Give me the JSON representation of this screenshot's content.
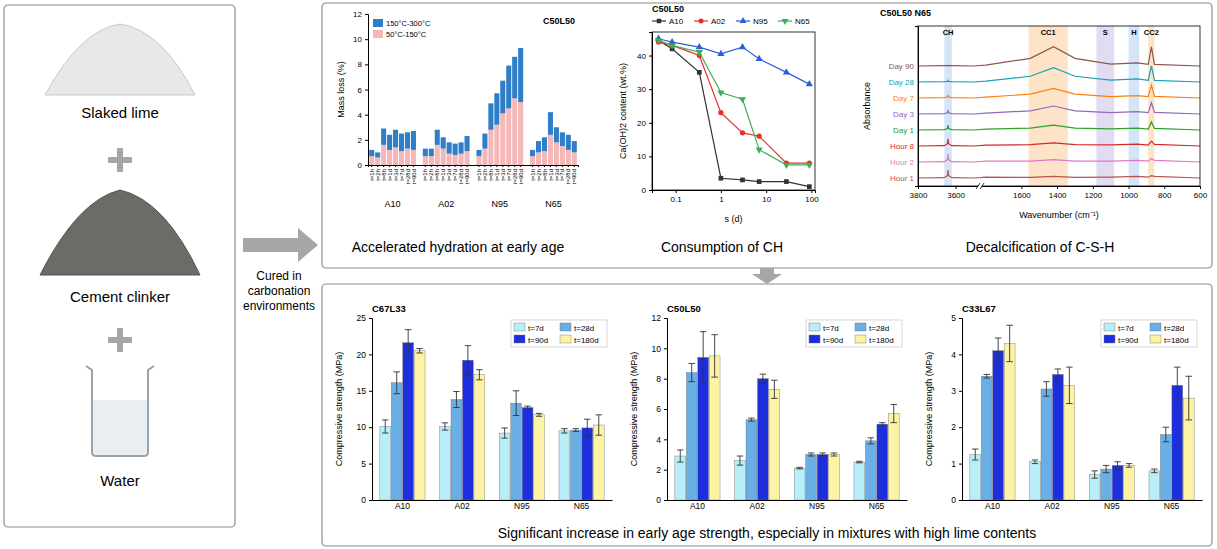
{
  "diagram": {
    "ingredients": [
      "Slaked lime",
      "Cement clinker",
      "Water"
    ],
    "process_label": "Cured in carbonation environments",
    "top_captions": [
      "Accelerated hydration at early age",
      "Consumption of CH",
      "Decalcification of C-S-H"
    ],
    "bottom_caption": "Significant increase in early age strength, especially in mixtures with high lime contents"
  },
  "chart_data": [
    {
      "type": "bar",
      "stacked": true,
      "title": "C50L50",
      "ylabel": "Mass loss (%)",
      "categories": [
        "t=1h",
        "t=2h",
        "t=8h",
        "t=1d",
        "t=3d",
        "t=7d",
        "t=28d",
        "t=90d",
        "t=1h",
        "t=2h",
        "t=8h",
        "t=1d",
        "t=3d",
        "t=7d",
        "t=28d",
        "t=90d",
        "t=1h",
        "t=2h",
        "t=8h",
        "t=1d",
        "t=3d",
        "t=7d",
        "t=28d",
        "t=90d",
        "t=1h",
        "t=2h",
        "t=8h",
        "t=1d",
        "t=3d",
        "t=7d",
        "t=28d",
        "t=90d"
      ],
      "groups": [
        "A10",
        "A02",
        "N95",
        "N65"
      ],
      "series": [
        {
          "name": "150°C-300°C",
          "color": "#2f7fc8",
          "values": [
            0.5,
            0.4,
            1.3,
            1.2,
            1.4,
            1.4,
            1.3,
            1.5,
            0.6,
            0.6,
            1.2,
            0.9,
            0.9,
            0.9,
            0.9,
            1.2,
            0.5,
            1.2,
            2.1,
            2.5,
            2.6,
            3.4,
            3.3,
            4.3,
            0.5,
            0.9,
            1.1,
            1.8,
            1.2,
            1.1,
            1.2,
            0.9
          ]
        },
        {
          "name": "50°C-150°C",
          "color": "#f4b8b8",
          "values": [
            0.7,
            0.6,
            1.6,
            1.2,
            1.4,
            1.1,
            1.3,
            1.2,
            0.7,
            0.7,
            1.6,
            1.3,
            0.9,
            0.8,
            0.9,
            1.1,
            0.7,
            1.3,
            2.8,
            3.2,
            4.1,
            4.5,
            5.3,
            5.0,
            0.7,
            1.0,
            1.1,
            2.4,
            1.8,
            1.5,
            1.2,
            1.0
          ]
        }
      ],
      "ylim": [
        0,
        12
      ],
      "yticks": [
        0,
        2,
        4,
        6,
        8,
        10,
        12
      ],
      "legend": "upper left"
    },
    {
      "type": "line",
      "log": "x",
      "title": "C50L50",
      "xlabel": "s (d)",
      "ylabel": "Ca(OH)2 content (wt.%)",
      "x": [
        0.0417,
        0.0833,
        0.333,
        1,
        3,
        7,
        28,
        90
      ],
      "series": [
        {
          "name": "A10",
          "color": "#333333",
          "marker": "square",
          "values": [
            44.5,
            42,
            35,
            3.5,
            3,
            2.5,
            2.5,
            1
          ]
        },
        {
          "name": "A02",
          "color": "#e8302a",
          "marker": "circle",
          "values": [
            44,
            43,
            40,
            23,
            17,
            16,
            8,
            8
          ]
        },
        {
          "name": "N95",
          "color": "#2b5fd9",
          "marker": "triangle-up",
          "values": [
            45,
            44,
            42.5,
            40.5,
            42.5,
            39,
            35,
            31.5
          ]
        },
        {
          "name": "N65",
          "color": "#3fae5a",
          "marker": "triangle-down",
          "values": [
            44.5,
            43,
            41,
            29,
            27,
            12,
            7.5,
            7.5
          ]
        }
      ],
      "xlim": [
        0.03,
        120
      ],
      "xticks": [
        0.1,
        1,
        10,
        100
      ],
      "ylim": [
        0,
        47
      ],
      "yticks": [
        0,
        10,
        20,
        30,
        40
      ],
      "legend": "top"
    },
    {
      "type": "line",
      "title": "C50L50 N65",
      "xlabel": "Wavenumber (cm⁻¹)",
      "ylabel": "Absorbance",
      "x": [
        3800,
        3660,
        3643,
        3640,
        3637,
        3620,
        3500,
        1800,
        1550,
        1420,
        1300,
        1100,
        950,
        890,
        872,
        855,
        600
      ],
      "series": [
        {
          "name": "Hour 1",
          "color": "#c0504d",
          "values": [
            0.5,
            0.52,
            0.65,
            1.0,
            0.65,
            0.52,
            0.5,
            0.55,
            0.54,
            0.6,
            0.54,
            0.56,
            0.6,
            0.55,
            0.65,
            0.6,
            0.5
          ]
        },
        {
          "name": "Hour 2",
          "color": "#e377c2",
          "values": [
            1.5,
            1.52,
            1.65,
            2.0,
            1.65,
            1.52,
            1.5,
            1.55,
            1.56,
            1.65,
            1.56,
            1.56,
            1.6,
            1.55,
            1.7,
            1.6,
            1.5
          ]
        },
        {
          "name": "Hour 8",
          "color": "#d62728",
          "values": [
            2.5,
            2.52,
            2.64,
            2.95,
            2.64,
            2.52,
            2.5,
            2.55,
            2.58,
            2.7,
            2.58,
            2.57,
            2.62,
            2.56,
            2.8,
            2.6,
            2.5
          ]
        },
        {
          "name": "Day 1",
          "color": "#2ca02c",
          "values": [
            3.5,
            3.52,
            3.59,
            3.8,
            3.59,
            3.52,
            3.5,
            3.55,
            3.62,
            3.8,
            3.62,
            3.57,
            3.62,
            3.56,
            4.0,
            3.6,
            3.5
          ]
        },
        {
          "name": "Day 3",
          "color": "#9467bd",
          "values": [
            4.5,
            4.52,
            4.58,
            4.75,
            4.58,
            4.52,
            4.5,
            4.55,
            4.7,
            5.0,
            4.7,
            4.59,
            4.65,
            4.58,
            5.2,
            4.6,
            4.5
          ]
        },
        {
          "name": "Day 7",
          "color": "#ff7f0e",
          "values": [
            5.5,
            5.52,
            5.56,
            5.7,
            5.56,
            5.52,
            5.5,
            5.55,
            5.74,
            6.1,
            5.74,
            5.59,
            5.65,
            5.58,
            6.3,
            5.6,
            5.5
          ]
        },
        {
          "name": "Day 28",
          "color": "#17a2b8",
          "values": [
            6.5,
            6.52,
            6.53,
            6.6,
            6.53,
            6.52,
            6.5,
            6.55,
            6.86,
            7.4,
            6.86,
            6.62,
            6.7,
            6.6,
            7.5,
            6.6,
            6.5
          ]
        },
        {
          "name": "Day 90",
          "color": "#8c564b",
          "values": [
            7.5,
            7.52,
            7.52,
            7.55,
            7.52,
            7.52,
            7.5,
            7.55,
            7.98,
            8.7,
            7.98,
            7.62,
            7.7,
            7.6,
            8.7,
            7.6,
            7.5
          ]
        }
      ],
      "xlim": [
        3800,
        600
      ],
      "axis_break": [
        3500,
        1800
      ],
      "xticks": [
        3800,
        3600,
        1600,
        1400,
        1200,
        1000,
        800,
        600
      ],
      "ylim": [
        0,
        10
      ],
      "tick_labels": "x",
      "legend": "left",
      "annotations": [
        {
          "label": "CH",
          "x": [
            3660,
            3620
          ],
          "color": "#d3e5f7"
        },
        {
          "label": "CC1",
          "x": [
            1560,
            1340
          ],
          "color": "#fde4c8"
        },
        {
          "label": "S",
          "x": [
            1180,
            1080
          ],
          "color": "#e2dcf2"
        },
        {
          "label": "H",
          "x": [
            1000,
            940
          ],
          "color": "#d3e5f7"
        },
        {
          "label": "CC2",
          "x": [
            890,
            855
          ],
          "color": "#fde4c8"
        }
      ]
    },
    {
      "type": "bar",
      "title": "C67L33",
      "ylabel": "Compressive strength (MPa)",
      "categories": [
        "A10",
        "A02",
        "N95",
        "N65"
      ],
      "series": [
        {
          "name": "t=7d",
          "color": "#b7eef7",
          "values": [
            10.1,
            10.1,
            9.2,
            9.5
          ],
          "errors": [
            0.9,
            0.5,
            0.7,
            0.3
          ]
        },
        {
          "name": "t=28d",
          "color": "#6aaee6",
          "values": [
            16.1,
            13.8,
            13.3,
            9.6
          ],
          "errors": [
            1.5,
            1.1,
            1.7,
            0.2
          ]
        },
        {
          "name": "t=90d",
          "color": "#1d2fdc",
          "values": [
            21.6,
            19.2,
            12.7,
            9.9
          ],
          "errors": [
            1.8,
            2.0,
            0.2,
            1.2
          ]
        },
        {
          "name": "t=180d",
          "color": "#fcf3a5",
          "values": [
            20.5,
            17.2,
            11.7,
            10.3
          ],
          "errors": [
            0.3,
            0.7,
            0.2,
            1.4
          ]
        }
      ],
      "ylim": [
        0,
        25
      ],
      "yticks": [
        0,
        5,
        10,
        15,
        20,
        25
      ],
      "legend": "upper right"
    },
    {
      "type": "bar",
      "title": "C50L50",
      "ylabel": "Compressive strength (MPa)",
      "categories": [
        "A10",
        "A02",
        "N95",
        "N65"
      ],
      "series": [
        {
          "name": "t=7d",
          "color": "#b7eef7",
          "values": [
            2.9,
            2.6,
            2.1,
            2.5
          ],
          "errors": [
            0.4,
            0.3,
            0.05,
            0.05
          ]
        },
        {
          "name": "t=28d",
          "color": "#6aaee6",
          "values": [
            8.4,
            5.3,
            3.0,
            3.9
          ],
          "errors": [
            0.6,
            0.1,
            0.1,
            0.2
          ]
        },
        {
          "name": "t=90d",
          "color": "#1d2fdc",
          "values": [
            9.4,
            8.0,
            3.0,
            5.0
          ],
          "errors": [
            1.7,
            0.3,
            0.1,
            0.1
          ]
        },
        {
          "name": "t=180d",
          "color": "#fcf3a5",
          "values": [
            9.5,
            7.3,
            3.0,
            5.7
          ],
          "errors": [
            1.4,
            0.6,
            0.1,
            0.6
          ]
        }
      ],
      "ylim": [
        0,
        12
      ],
      "yticks": [
        0,
        2,
        4,
        6,
        8,
        10,
        12
      ],
      "legend": "upper right"
    },
    {
      "type": "bar",
      "title": "C33L67",
      "ylabel": "Compressive strength (MPa)",
      "categories": [
        "A10",
        "A02",
        "N95",
        "N65"
      ],
      "series": [
        {
          "name": "t=7d",
          "color": "#b7eef7",
          "values": [
            1.25,
            1.05,
            0.7,
            0.8
          ],
          "errors": [
            0.15,
            0.05,
            0.1,
            0.05
          ]
        },
        {
          "name": "t=28d",
          "color": "#6aaee6",
          "values": [
            3.4,
            3.05,
            0.85,
            1.8
          ],
          "errors": [
            0.05,
            0.2,
            0.1,
            0.2
          ]
        },
        {
          "name": "t=90d",
          "color": "#1d2fdc",
          "values": [
            4.1,
            3.45,
            0.95,
            3.15
          ],
          "errors": [
            0.35,
            0.15,
            0.1,
            0.5
          ]
        },
        {
          "name": "t=180d",
          "color": "#fcf3a5",
          "values": [
            4.3,
            3.15,
            0.95,
            2.8
          ],
          "errors": [
            0.5,
            0.5,
            0.05,
            0.6
          ]
        }
      ],
      "ylim": [
        0,
        5
      ],
      "yticks": [
        0,
        1,
        2,
        3,
        4,
        5
      ],
      "legend": "upper right"
    }
  ]
}
